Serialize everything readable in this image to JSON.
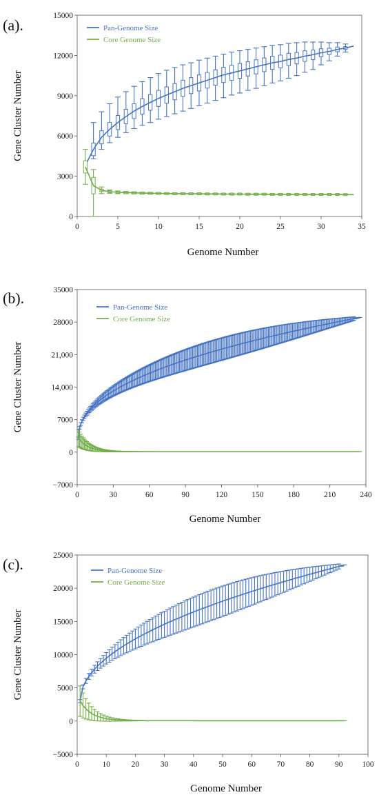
{
  "chart_data": [
    {
      "panel_label": "(a).",
      "type": "line",
      "xlabel": "Genome Number",
      "ylabel": "Gene Cluster Number",
      "xlim": [
        0,
        35
      ],
      "ylim": [
        0,
        15000
      ],
      "xticks": [
        "0",
        "5",
        "10",
        "15",
        "20",
        "25",
        "30",
        "35"
      ],
      "yticks": [
        "0",
        "3000",
        "6000",
        "9000",
        "12000",
        "15000"
      ],
      "legend_position": "top-left",
      "error_style": "boxplot",
      "series": [
        {
          "name": "Pan-Genome Size",
          "color": "#4472C4",
          "x": [
            1,
            2,
            3,
            4,
            5,
            6,
            7,
            8,
            9,
            10,
            11,
            12,
            13,
            14,
            15,
            16,
            17,
            18,
            19,
            20,
            21,
            22,
            23,
            24,
            25,
            26,
            27,
            28,
            29,
            30,
            31,
            32,
            33,
            34
          ],
          "values": [
            3800,
            5000,
            5900,
            6500,
            7000,
            7450,
            7850,
            8200,
            8500,
            8800,
            9050,
            9300,
            9550,
            9750,
            9950,
            10150,
            10350,
            10550,
            10700,
            10850,
            11000,
            11150,
            11300,
            11450,
            11550,
            11700,
            11800,
            11950,
            12050,
            12200,
            12300,
            12450,
            12550,
            12700
          ],
          "err_low": [
            0,
            700,
            900,
            1000,
            1100,
            1200,
            1300,
            1400,
            1500,
            1550,
            1600,
            1650,
            1700,
            1700,
            1700,
            1700,
            1700,
            1700,
            1650,
            1650,
            1600,
            1600,
            1550,
            1500,
            1450,
            1400,
            1300,
            1200,
            1100,
            900,
            700,
            500,
            300,
            0
          ],
          "err_high": [
            0,
            2000,
            1900,
            1900,
            1900,
            1850,
            1850,
            1850,
            1850,
            1850,
            1850,
            1800,
            1750,
            1700,
            1700,
            1650,
            1600,
            1550,
            1550,
            1500,
            1450,
            1400,
            1350,
            1300,
            1250,
            1200,
            1150,
            1050,
            950,
            800,
            650,
            500,
            300,
            0
          ]
        },
        {
          "name": "Core Genome Size",
          "color": "#70AD47",
          "x": [
            1,
            2,
            3,
            4,
            5,
            6,
            7,
            8,
            9,
            10,
            11,
            12,
            13,
            14,
            15,
            16,
            17,
            18,
            19,
            20,
            21,
            22,
            23,
            24,
            25,
            26,
            27,
            28,
            29,
            30,
            31,
            32,
            33,
            34
          ],
          "values": [
            3700,
            2300,
            1950,
            1850,
            1800,
            1780,
            1760,
            1740,
            1730,
            1720,
            1710,
            1700,
            1700,
            1690,
            1690,
            1680,
            1680,
            1670,
            1670,
            1670,
            1660,
            1660,
            1660,
            1650,
            1650,
            1650,
            1650,
            1640,
            1640,
            1640,
            1640,
            1640,
            1630,
            1630
          ],
          "err_low": [
            1300,
            2300,
            250,
            120,
            100,
            80,
            70,
            60,
            60,
            50,
            50,
            50,
            50,
            50,
            50,
            40,
            40,
            40,
            40,
            40,
            40,
            40,
            40,
            40,
            40,
            30,
            30,
            30,
            30,
            30,
            30,
            20,
            20,
            0
          ],
          "err_high": [
            1300,
            1200,
            250,
            120,
            100,
            80,
            70,
            60,
            60,
            50,
            50,
            50,
            50,
            50,
            50,
            40,
            40,
            40,
            40,
            40,
            40,
            40,
            40,
            40,
            40,
            30,
            30,
            30,
            30,
            30,
            30,
            20,
            20,
            0
          ]
        }
      ]
    },
    {
      "panel_label": "(b).",
      "type": "line",
      "xlabel": "Genome Number",
      "ylabel": "Gene Cluster Number",
      "xlim": [
        0,
        240
      ],
      "ylim": [
        -7000,
        35000
      ],
      "xticks": [
        "0",
        "30",
        "60",
        "90",
        "120",
        "150",
        "180",
        "210",
        "240"
      ],
      "yticks": [
        "−7000",
        "0",
        "7000",
        "14,000",
        "21,000",
        "28000",
        "35000"
      ],
      "legend_position": "top-left",
      "error_style": "errorbar",
      "series": [
        {
          "name": "Pan-Genome Size",
          "color": "#4472C4",
          "model": "power",
          "x_range": [
            1,
            235
          ],
          "y_start": 3000,
          "y_end": 29000,
          "exponent": 0.45,
          "err_max": 2400
        },
        {
          "name": "Core Genome Size",
          "color": "#70AD47",
          "model": "decay",
          "x_range": [
            1,
            235
          ],
          "y_start": 3000,
          "y_floor": 100,
          "decay_rate": 0.12,
          "err_max": 1800
        }
      ]
    },
    {
      "panel_label": "(c).",
      "type": "line",
      "xlabel": "Genome Number",
      "ylabel": "Gene Cluster Number",
      "xlim": [
        0,
        100
      ],
      "ylim": [
        -5000,
        25000
      ],
      "xticks": [
        "0",
        "10",
        "20",
        "30",
        "40",
        "50",
        "60",
        "70",
        "80",
        "90",
        "100"
      ],
      "yticks": [
        "−5000",
        "0",
        "5000",
        "10000",
        "15000",
        "20000",
        "25000"
      ],
      "legend_position": "top-left",
      "error_style": "errorbar",
      "series": [
        {
          "name": "Pan-Genome Size",
          "color": "#4472C4",
          "model": "power",
          "x_range": [
            1,
            92
          ],
          "y_start": 3000,
          "y_end": 23500,
          "exponent": 0.5,
          "err_max": 2300
        },
        {
          "name": "Core Genome Size",
          "color": "#70AD47",
          "model": "decay",
          "x_range": [
            1,
            92
          ],
          "y_start": 3000,
          "y_floor": 50,
          "decay_rate": 0.25,
          "err_max": 2300
        }
      ]
    }
  ]
}
